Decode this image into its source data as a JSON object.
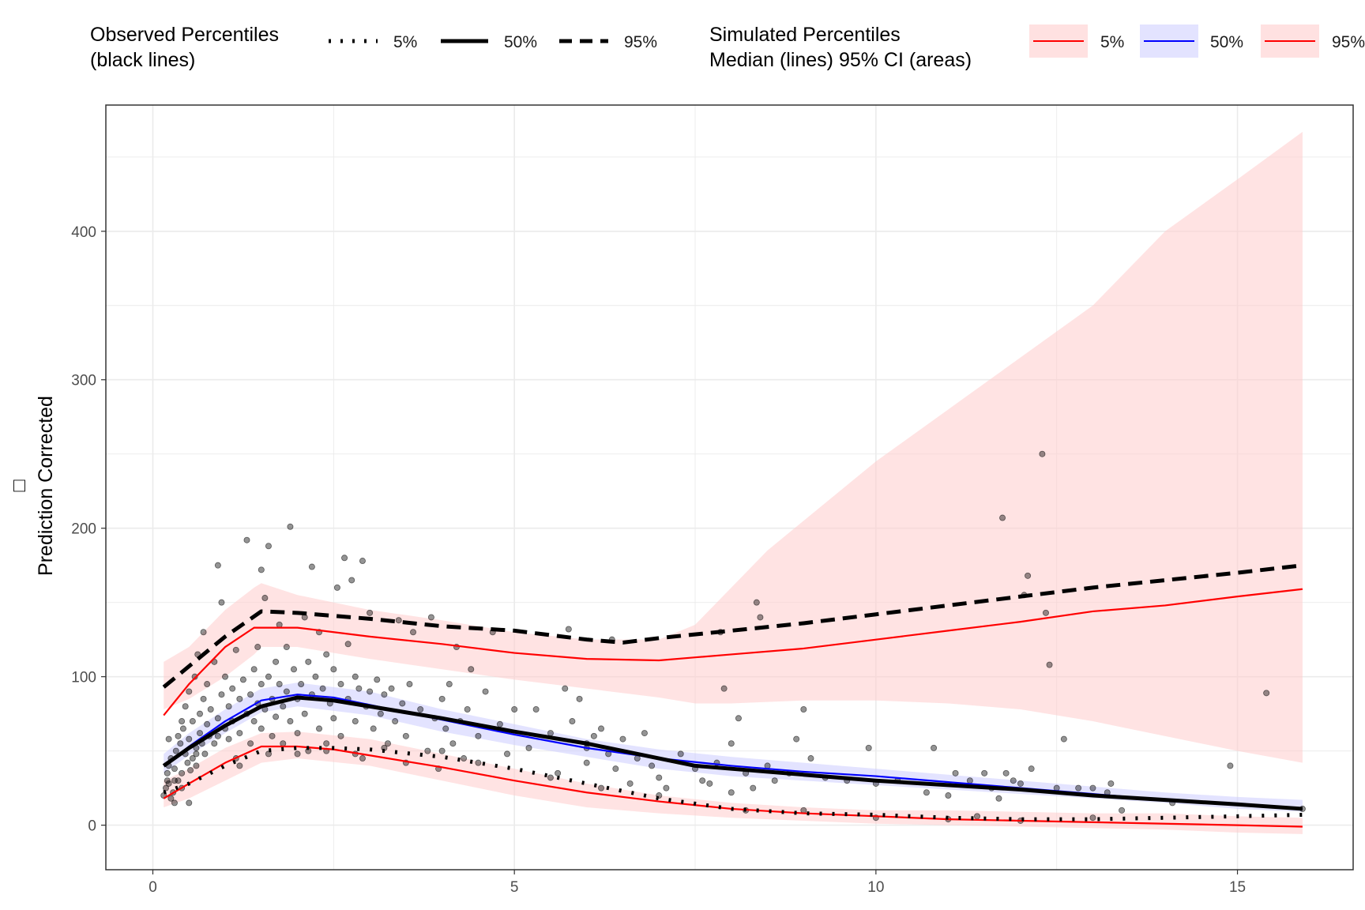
{
  "chart_data": {
    "type": "line",
    "title": "",
    "xlabel": "",
    "ylabel": "Prediction Corrected",
    "ylabel_glyph": "□",
    "xlim": [
      -0.65,
      16.6
    ],
    "ylim": [
      -30,
      485
    ],
    "x_ticks": [
      0,
      5,
      10,
      15
    ],
    "y_ticks": [
      0,
      100,
      200,
      300,
      400
    ],
    "grid": true,
    "colors": {
      "obs_line": "#000000",
      "sim_pi": "#ff0000",
      "sim_median": "#0000ff",
      "pi_area": "#ffcccc",
      "median_area": "#ccccff",
      "points": "#000000",
      "panel_border": "#333333",
      "grid": "#ebebeb",
      "tick_text": "#4d4d4d"
    },
    "legend": {
      "observed": {
        "title_line1": "Observed Percentiles",
        "title_line2": "(black lines)",
        "keys": [
          {
            "label": "5%",
            "style": "dotted"
          },
          {
            "label": "50%",
            "style": "solid"
          },
          {
            "label": "95%",
            "style": "dashed"
          }
        ]
      },
      "simulated": {
        "title_line1": "Simulated Percentiles",
        "title_line2": "Median (lines) 95% CI (areas)",
        "keys": [
          {
            "label": "5%",
            "line_color": "#ff0000",
            "fill_color": "#ffcccc"
          },
          {
            "label": "50%",
            "line_color": "#0000ff",
            "fill_color": "#ccccff"
          },
          {
            "label": "95%",
            "line_color": "#ff0000",
            "fill_color": "#ffcccc"
          }
        ]
      }
    },
    "series": [
      {
        "name": "Simulated 95% CI of 95th percentile",
        "kind": "area",
        "x": [
          0.15,
          0.5,
          1.0,
          1.4,
          1.5,
          2.0,
          3.0,
          4.0,
          5.0,
          6.0,
          7.0,
          7.5,
          8.0,
          8.5,
          9.0,
          10.0,
          11.0,
          12.0,
          13.0,
          14.0,
          15.0,
          15.9
        ],
        "lower": [
          78,
          85,
          100,
          115,
          120,
          120,
          112,
          105,
          98,
          92,
          86,
          82,
          82,
          83,
          84,
          84,
          82,
          78,
          70,
          60,
          50,
          42
        ],
        "upper": [
          110,
          120,
          145,
          160,
          163,
          155,
          145,
          138,
          130,
          125,
          125,
          135,
          160,
          185,
          205,
          245,
          280,
          315,
          350,
          400,
          435,
          467
        ]
      },
      {
        "name": "Simulated 95% CI of 5th percentile",
        "kind": "area",
        "x": [
          0.15,
          0.5,
          1.0,
          1.5,
          2.0,
          3.0,
          4.0,
          5.0,
          6.0,
          7.0,
          8.0,
          9.0,
          10.0,
          11.0,
          12.0,
          13.0,
          14.0,
          15.0,
          15.9
        ],
        "lower": [
          12,
          18,
          30,
          42,
          45,
          40,
          30,
          20,
          12,
          8,
          5,
          3,
          1,
          0,
          -1,
          -2,
          -3,
          -5,
          -6
        ],
        "upper": [
          30,
          38,
          52,
          62,
          63,
          58,
          48,
          38,
          28,
          20,
          15,
          12,
          10,
          10,
          9,
          8,
          8,
          6,
          5
        ]
      },
      {
        "name": "Simulated 95% CI of median",
        "kind": "area",
        "x": [
          0.15,
          0.5,
          1.0,
          1.5,
          2.0,
          3.0,
          4.0,
          5.0,
          6.0,
          7.0,
          8.0,
          9.0,
          10.0,
          11.0,
          12.0,
          13.0,
          14.0,
          15.0,
          15.9
        ],
        "lower": [
          35,
          47,
          62,
          76,
          80,
          74,
          63,
          54,
          46,
          38,
          33,
          30,
          27,
          24,
          21,
          18,
          15,
          11,
          9
        ],
        "upper": [
          48,
          62,
          78,
          92,
          96,
          90,
          78,
          68,
          58,
          51,
          46,
          42,
          38,
          34,
          30,
          26,
          22,
          19,
          17
        ]
      },
      {
        "name": "Simulated median 95th percentile",
        "kind": "line",
        "style": "sim95",
        "x": [
          0.15,
          0.5,
          1.0,
          1.4,
          2.0,
          3.0,
          4.0,
          5.0,
          6.0,
          7.0,
          7.5,
          8.0,
          9.0,
          10.0,
          11.0,
          12.0,
          13.0,
          14.0,
          15.0,
          15.9
        ],
        "y": [
          74,
          95,
          120,
          133,
          133,
          127,
          122,
          116,
          112,
          111,
          113,
          115,
          119,
          125,
          131,
          137,
          144,
          148,
          154,
          159
        ]
      },
      {
        "name": "Simulated median 50th percentile",
        "kind": "line",
        "style": "sim50",
        "x": [
          0.15,
          0.5,
          1.0,
          1.5,
          2.0,
          2.5,
          3.0,
          4.0,
          5.0,
          6.0,
          7.0,
          8.0,
          9.0,
          10.0,
          11.0,
          12.0,
          13.0,
          14.0,
          15.0,
          15.9
        ],
        "y": [
          40,
          53,
          70,
          84,
          88,
          86,
          81,
          71,
          61,
          52,
          45,
          40,
          36,
          33,
          29,
          25,
          21,
          17,
          14,
          11
        ]
      },
      {
        "name": "Simulated median 5th percentile",
        "kind": "line",
        "style": "sim5",
        "x": [
          0.15,
          0.5,
          1.0,
          1.5,
          2.0,
          2.5,
          3.0,
          4.0,
          5.0,
          6.0,
          7.0,
          8.0,
          9.0,
          10.0,
          11.0,
          12.0,
          13.0,
          14.0,
          15.0,
          15.9
        ],
        "y": [
          18,
          28,
          42,
          53,
          53,
          51,
          47,
          39,
          30,
          22,
          16,
          11,
          8,
          6,
          4,
          3,
          2,
          1,
          0,
          -1
        ]
      },
      {
        "name": "Observed 95th percentile",
        "kind": "line",
        "style": "obs95",
        "x": [
          0.15,
          0.5,
          1.0,
          1.5,
          2.0,
          3.0,
          4.0,
          5.0,
          6.0,
          6.5,
          7.0,
          8.0,
          9.0,
          10.0,
          11.0,
          12.0,
          13.0,
          14.0,
          15.0,
          15.9
        ],
        "y": [
          93,
          107,
          127,
          144,
          143,
          139,
          134,
          131,
          125,
          123,
          126,
          131,
          136,
          142,
          148,
          154,
          160,
          165,
          170,
          175
        ]
      },
      {
        "name": "Observed 50th percentile",
        "kind": "line",
        "style": "obs50",
        "x": [
          0.15,
          0.5,
          1.0,
          1.5,
          2.0,
          2.5,
          3.0,
          4.0,
          5.0,
          6.0,
          7.0,
          7.5,
          8.0,
          9.0,
          10.0,
          11.0,
          12.0,
          13.0,
          14.0,
          15.0,
          15.9
        ],
        "y": [
          40,
          52,
          67,
          80,
          86,
          84,
          80,
          72,
          63,
          55,
          45,
          40,
          38,
          34,
          30,
          27,
          24,
          20,
          17,
          14,
          11
        ]
      },
      {
        "name": "Observed 5th percentile",
        "kind": "line",
        "style": "obs5",
        "x": [
          0.15,
          0.5,
          1.0,
          1.5,
          2.0,
          2.5,
          3.0,
          4.0,
          5.0,
          6.0,
          7.0,
          8.0,
          9.0,
          10.0,
          11.0,
          12.0,
          13.0,
          14.0,
          15.0,
          15.9
        ],
        "y": [
          22,
          28,
          40,
          50,
          52,
          52,
          51,
          46,
          38,
          28,
          18,
          11,
          8,
          7,
          5,
          4,
          4,
          5,
          6,
          7
        ]
      }
    ],
    "points": [
      [
        0.15,
        20
      ],
      [
        0.18,
        25
      ],
      [
        0.2,
        30
      ],
      [
        0.2,
        35
      ],
      [
        0.22,
        40
      ],
      [
        0.22,
        28
      ],
      [
        0.25,
        18
      ],
      [
        0.25,
        45
      ],
      [
        0.28,
        22
      ],
      [
        0.3,
        15
      ],
      [
        0.3,
        38
      ],
      [
        0.32,
        50
      ],
      [
        0.35,
        60
      ],
      [
        0.35,
        30
      ],
      [
        0.38,
        55
      ],
      [
        0.4,
        35
      ],
      [
        0.4,
        25
      ],
      [
        0.42,
        65
      ],
      [
        0.45,
        48
      ],
      [
        0.45,
        80
      ],
      [
        0.48,
        42
      ],
      [
        0.5,
        58
      ],
      [
        0.5,
        90
      ],
      [
        0.52,
        37
      ],
      [
        0.55,
        70
      ],
      [
        0.55,
        45
      ],
      [
        0.58,
        100
      ],
      [
        0.6,
        52
      ],
      [
        0.6,
        40
      ],
      [
        0.62,
        115
      ],
      [
        0.65,
        75
      ],
      [
        0.65,
        62
      ],
      [
        0.68,
        55
      ],
      [
        0.7,
        130
      ],
      [
        0.7,
        85
      ],
      [
        0.72,
        48
      ],
      [
        0.75,
        95
      ],
      [
        0.75,
        68
      ],
      [
        0.78,
        60
      ],
      [
        0.8,
        78
      ],
      [
        0.85,
        110
      ],
      [
        0.85,
        55
      ],
      [
        0.9,
        72
      ],
      [
        0.9,
        175
      ],
      [
        0.95,
        150
      ],
      [
        0.95,
        88
      ],
      [
        1.0,
        65
      ],
      [
        1.0,
        100
      ],
      [
        1.05,
        58
      ],
      [
        1.05,
        80
      ],
      [
        1.1,
        92
      ],
      [
        1.1,
        70
      ],
      [
        1.15,
        45
      ],
      [
        1.15,
        118
      ],
      [
        1.2,
        85
      ],
      [
        1.2,
        62
      ],
      [
        1.25,
        98
      ],
      [
        1.3,
        75
      ],
      [
        1.3,
        192
      ],
      [
        1.35,
        88
      ],
      [
        1.35,
        55
      ],
      [
        1.4,
        105
      ],
      [
        1.4,
        70
      ],
      [
        1.45,
        82
      ],
      [
        1.45,
        120
      ],
      [
        1.5,
        95
      ],
      [
        1.5,
        172
      ],
      [
        1.5,
        65
      ],
      [
        1.55,
        153
      ],
      [
        1.55,
        78
      ],
      [
        1.6,
        188
      ],
      [
        1.6,
        100
      ],
      [
        1.65,
        85
      ],
      [
        1.65,
        60
      ],
      [
        1.7,
        110
      ],
      [
        1.7,
        73
      ],
      [
        1.75,
        95
      ],
      [
        1.75,
        135
      ],
      [
        1.8,
        80
      ],
      [
        1.8,
        55
      ],
      [
        1.85,
        120
      ],
      [
        1.85,
        90
      ],
      [
        1.9,
        201
      ],
      [
        1.9,
        70
      ],
      [
        1.95,
        105
      ],
      [
        2.0,
        85
      ],
      [
        2.0,
        62
      ],
      [
        2.05,
        95
      ],
      [
        2.1,
        140
      ],
      [
        2.1,
        75
      ],
      [
        2.15,
        110
      ],
      [
        2.15,
        50
      ],
      [
        2.2,
        174
      ],
      [
        2.2,
        88
      ],
      [
        2.25,
        100
      ],
      [
        2.3,
        130
      ],
      [
        2.3,
        65
      ],
      [
        2.35,
        92
      ],
      [
        2.4,
        115
      ],
      [
        2.4,
        55
      ],
      [
        2.45,
        82
      ],
      [
        2.5,
        105
      ],
      [
        2.5,
        72
      ],
      [
        2.55,
        160
      ],
      [
        2.6,
        95
      ],
      [
        2.6,
        60
      ],
      [
        2.65,
        180
      ],
      [
        2.7,
        122
      ],
      [
        2.7,
        85
      ],
      [
        2.75,
        165
      ],
      [
        2.8,
        100
      ],
      [
        2.8,
        70
      ],
      [
        2.85,
        92
      ],
      [
        2.9,
        178
      ],
      [
        2.9,
        45
      ],
      [
        2.95,
        80
      ],
      [
        3.0,
        90
      ],
      [
        3.0,
        143
      ],
      [
        3.05,
        65
      ],
      [
        3.1,
        98
      ],
      [
        3.15,
        75
      ],
      [
        3.2,
        88
      ],
      [
        3.25,
        55
      ],
      [
        3.3,
        92
      ],
      [
        3.35,
        70
      ],
      [
        3.4,
        138
      ],
      [
        3.45,
        82
      ],
      [
        3.5,
        60
      ],
      [
        3.55,
        95
      ],
      [
        3.6,
        130
      ],
      [
        3.7,
        78
      ],
      [
        3.8,
        50
      ],
      [
        3.85,
        140
      ],
      [
        3.9,
        72
      ],
      [
        3.95,
        38
      ],
      [
        4.0,
        85
      ],
      [
        4.05,
        65
      ],
      [
        4.1,
        95
      ],
      [
        4.15,
        55
      ],
      [
        4.2,
        120
      ],
      [
        4.25,
        70
      ],
      [
        4.3,
        45
      ],
      [
        4.35,
        78
      ],
      [
        4.4,
        105
      ],
      [
        4.5,
        60
      ],
      [
        4.6,
        90
      ],
      [
        4.7,
        130
      ],
      [
        4.8,
        68
      ],
      [
        4.9,
        48
      ],
      [
        5.0,
        78
      ],
      [
        5.2,
        52
      ],
      [
        5.3,
        78
      ],
      [
        5.5,
        62
      ],
      [
        5.6,
        35
      ],
      [
        5.7,
        92
      ],
      [
        5.75,
        132
      ],
      [
        5.8,
        70
      ],
      [
        5.9,
        85
      ],
      [
        6.0,
        42
      ],
      [
        6.0,
        55
      ],
      [
        6.1,
        60
      ],
      [
        6.2,
        65
      ],
      [
        6.3,
        48
      ],
      [
        6.35,
        125
      ],
      [
        6.4,
        38
      ],
      [
        6.5,
        58
      ],
      [
        6.6,
        28
      ],
      [
        6.7,
        45
      ],
      [
        6.8,
        62
      ],
      [
        6.9,
        40
      ],
      [
        7.0,
        32
      ],
      [
        7.1,
        25
      ],
      [
        7.3,
        48
      ],
      [
        7.5,
        38
      ],
      [
        7.6,
        30
      ],
      [
        7.7,
        28
      ],
      [
        7.8,
        42
      ],
      [
        7.85,
        130
      ],
      [
        7.9,
        92
      ],
      [
        8.0,
        55
      ],
      [
        8.0,
        22
      ],
      [
        8.1,
        72
      ],
      [
        8.2,
        35
      ],
      [
        8.3,
        25
      ],
      [
        8.35,
        150
      ],
      [
        8.4,
        140
      ],
      [
        8.5,
        40
      ],
      [
        8.6,
        30
      ],
      [
        8.8,
        35
      ],
      [
        8.9,
        58
      ],
      [
        9.0,
        78
      ],
      [
        9.1,
        45
      ],
      [
        9.3,
        32
      ],
      [
        9.6,
        30
      ],
      [
        9.9,
        52
      ],
      [
        10.0,
        28
      ],
      [
        10.3,
        30
      ],
      [
        10.7,
        22
      ],
      [
        10.8,
        52
      ],
      [
        11.0,
        20
      ],
      [
        11.1,
        35
      ],
      [
        11.3,
        30
      ],
      [
        11.5,
        35
      ],
      [
        11.6,
        25
      ],
      [
        11.7,
        18
      ],
      [
        11.75,
        207
      ],
      [
        11.8,
        35
      ],
      [
        11.9,
        30
      ],
      [
        12.0,
        28
      ],
      [
        12.05,
        155
      ],
      [
        12.1,
        168
      ],
      [
        12.15,
        38
      ],
      [
        12.3,
        250
      ],
      [
        12.35,
        143
      ],
      [
        12.4,
        108
      ],
      [
        12.5,
        25
      ],
      [
        12.6,
        58
      ],
      [
        12.8,
        25
      ],
      [
        13.0,
        25
      ],
      [
        13.2,
        22
      ],
      [
        13.25,
        28
      ],
      [
        13.4,
        10
      ],
      [
        14.1,
        15
      ],
      [
        14.9,
        40
      ],
      [
        15.4,
        89
      ],
      [
        15.9,
        11
      ],
      [
        0.22,
        58
      ],
      [
        0.3,
        30
      ],
      [
        0.4,
        70
      ],
      [
        0.5,
        15
      ],
      [
        0.6,
        48
      ],
      [
        0.9,
        60
      ],
      [
        1.2,
        40
      ],
      [
        1.6,
        48
      ],
      [
        2.0,
        48
      ],
      [
        2.4,
        50
      ],
      [
        2.8,
        48
      ],
      [
        3.2,
        52
      ],
      [
        3.5,
        42
      ],
      [
        4.0,
        50
      ],
      [
        4.5,
        42
      ],
      [
        5.5,
        32
      ],
      [
        6.0,
        52
      ],
      [
        6.2,
        25
      ],
      [
        7.0,
        20
      ],
      [
        8.2,
        10
      ],
      [
        9.0,
        10
      ],
      [
        10.0,
        5
      ],
      [
        11.0,
        4
      ],
      [
        11.4,
        6
      ],
      [
        12.0,
        3
      ],
      [
        13.0,
        5
      ]
    ]
  }
}
